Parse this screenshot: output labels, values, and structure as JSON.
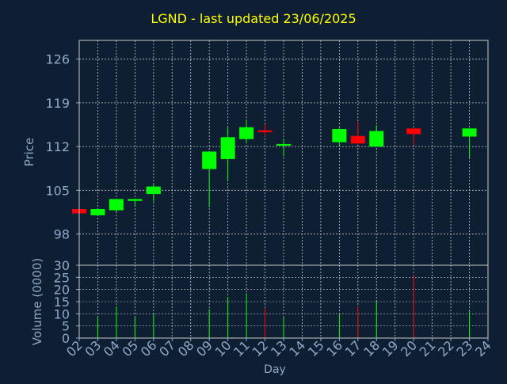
{
  "chart_data": [
    {
      "type": "candlestick",
      "title": "LGND - last updated 23/06/2025",
      "ylabel": "Price",
      "ylim": [
        93,
        129
      ],
      "yticks": [
        98,
        105,
        112,
        119,
        126
      ],
      "x_categories": [
        "02",
        "03",
        "04",
        "05",
        "06",
        "07",
        "08",
        "09",
        "10",
        "11",
        "12",
        "13",
        "14",
        "15",
        "16",
        "17",
        "18",
        "19",
        "20",
        "21",
        "22",
        "23",
        "24"
      ],
      "grid": true,
      "colors": {
        "up": "#00ff00",
        "down": "#ff0000"
      },
      "candles": [
        {
          "day": "02",
          "open": 102.0,
          "close": 101.3,
          "high": 102.0,
          "low": 101.3
        },
        {
          "day": "03",
          "open": 101.0,
          "close": 102.0,
          "high": 102.0,
          "low": 101.0
        },
        {
          "day": "04",
          "open": 101.8,
          "close": 103.6,
          "high": 103.6,
          "low": 101.6
        },
        {
          "day": "05",
          "open": 103.3,
          "close": 103.6,
          "high": 103.6,
          "low": 102.5
        },
        {
          "day": "06",
          "open": 104.4,
          "close": 105.6,
          "high": 106.0,
          "low": 103.2
        },
        {
          "day": "09",
          "open": 108.4,
          "close": 111.2,
          "high": 111.2,
          "low": 102.3
        },
        {
          "day": "10",
          "open": 110.0,
          "close": 113.5,
          "high": 115.0,
          "low": 106.5
        },
        {
          "day": "11",
          "open": 113.2,
          "close": 115.1,
          "high": 116.3,
          "low": 112.6
        },
        {
          "day": "12",
          "open": 114.6,
          "close": 114.3,
          "high": 115.6,
          "low": 113.6
        },
        {
          "day": "13",
          "open": 112.2,
          "close": 112.4,
          "high": 113.3,
          "low": 110.4
        },
        {
          "day": "16",
          "open": 112.7,
          "close": 114.8,
          "high": 115.0,
          "low": 112.0
        },
        {
          "day": "17",
          "open": 113.7,
          "close": 112.5,
          "high": 116.0,
          "low": 112.3
        },
        {
          "day": "18",
          "open": 112.0,
          "close": 114.5,
          "high": 115.4,
          "low": 112.0
        },
        {
          "day": "20",
          "open": 114.9,
          "close": 114.0,
          "high": 114.9,
          "low": 112.3
        },
        {
          "day": "23",
          "open": 113.6,
          "close": 114.9,
          "high": 114.9,
          "low": 110.2
        }
      ]
    },
    {
      "type": "bar",
      "ylabel": "Volume (0000)",
      "xlabel": "Day",
      "ylim": [
        0,
        30
      ],
      "yticks": [
        0,
        5,
        10,
        15,
        20,
        25,
        30
      ],
      "categories": [
        "02",
        "03",
        "04",
        "05",
        "06",
        "07",
        "08",
        "09",
        "10",
        "11",
        "12",
        "13",
        "14",
        "15",
        "16",
        "17",
        "18",
        "19",
        "20",
        "21",
        "22",
        "23",
        "24"
      ],
      "bars": [
        {
          "day": "02",
          "value": 0,
          "direction": "down"
        },
        {
          "day": "03",
          "value": 8.5,
          "direction": "up"
        },
        {
          "day": "04",
          "value": 13,
          "direction": "up"
        },
        {
          "day": "05",
          "value": 8.5,
          "direction": "up"
        },
        {
          "day": "06",
          "value": 10,
          "direction": "up"
        },
        {
          "day": "09",
          "value": 12,
          "direction": "up"
        },
        {
          "day": "10",
          "value": 17,
          "direction": "up"
        },
        {
          "day": "11",
          "value": 18.5,
          "direction": "up"
        },
        {
          "day": "12",
          "value": 12.5,
          "direction": "down"
        },
        {
          "day": "13",
          "value": 8.5,
          "direction": "up"
        },
        {
          "day": "16",
          "value": 10,
          "direction": "up"
        },
        {
          "day": "17",
          "value": 13,
          "direction": "down"
        },
        {
          "day": "18",
          "value": 15,
          "direction": "up"
        },
        {
          "day": "20",
          "value": 26,
          "direction": "down"
        },
        {
          "day": "23",
          "value": 11,
          "direction": "up"
        }
      ]
    }
  ],
  "colors": {
    "background": "#0f1f33",
    "title": "#ffff00",
    "axis_text": "#8fa8c8",
    "grid": "#c8c8c8"
  }
}
